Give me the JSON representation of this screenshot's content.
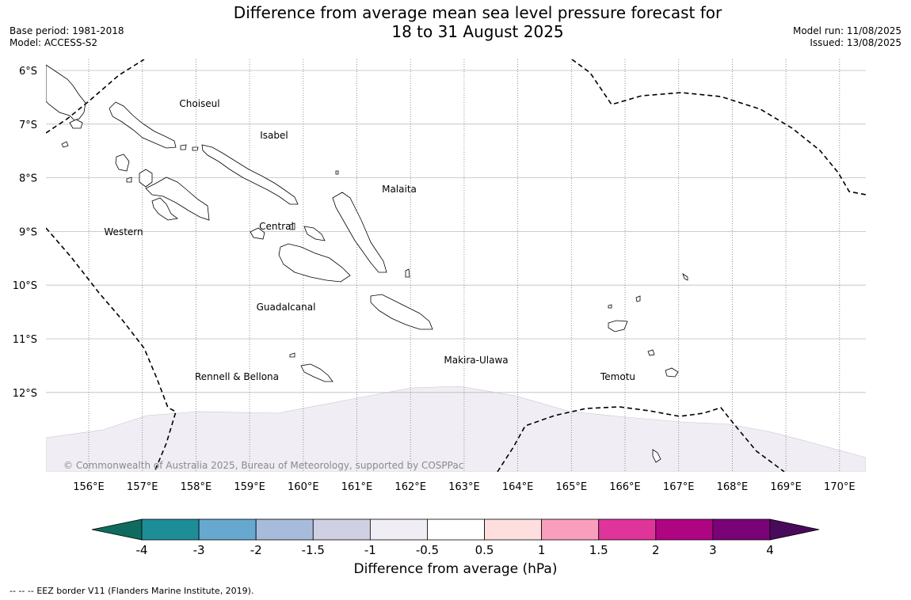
{
  "header": {
    "title_line1": "Difference from average mean sea level pressure forecast for",
    "title_line2": "18 to 31 August 2025",
    "base_period": "Base period: 1981-2018",
    "model": "Model: ACCESS-S2",
    "model_run": "Model run: 11/08/2025",
    "issued": "Issued: 13/08/2025"
  },
  "map": {
    "lat_labels": [
      "6°S",
      "7°S",
      "8°S",
      "9°S",
      "10°S",
      "11°S",
      "12°S"
    ],
    "lon_labels": [
      "156°E",
      "157°E",
      "158°E",
      "159°E",
      "160°E",
      "161°E",
      "162°E",
      "163°E",
      "164°E",
      "165°E",
      "166°E",
      "167°E",
      "168°E",
      "169°E",
      "170°E"
    ],
    "regions": [
      "Choiseul",
      "Isabel",
      "Malaita",
      "Western",
      "Central",
      "Guadalcanal",
      "Makira-Ulawa",
      "Rennell & Bellona",
      "Temotu"
    ],
    "copyright": "© Commonwealth of Australia 2025, Bureau of Meteorology, supported by COSPPac",
    "shading_color": "#f1edf4",
    "eez_line_color": "#000000"
  },
  "colorbar": {
    "title": "Difference from average (hPa)",
    "tick_labels": [
      "-4",
      "-3",
      "-2",
      "-1.5",
      "-1",
      "-0.5",
      "0.5",
      "1",
      "1.5",
      "2",
      "3",
      "4"
    ],
    "under_color": "#0f6b5f",
    "over_color": "#4a0a5c",
    "colors": [
      "#1d8e98",
      "#66a8d0",
      "#a7bcdb",
      "#cfd0e4",
      "#f1edf4",
      "#ffffff",
      "#fedede",
      "#f99fbd",
      "#df359b",
      "#af0582",
      "#7a0378"
    ]
  },
  "legend": {
    "eez_symbol": "--  --  --",
    "eez_label": "EEZ border V11 (Flanders Marine Institute, 2019)."
  }
}
